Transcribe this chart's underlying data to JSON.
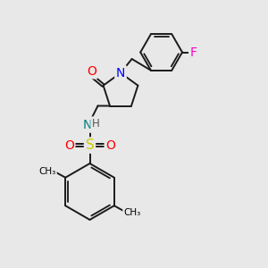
{
  "bg_color": "#e8e8e8",
  "bond_color": "#1a1a1a",
  "atom_colors": {
    "O": "#ff0000",
    "N_pyrrolidine": "#0000ff",
    "N_sulfonamide": "#008080",
    "S": "#cccc00",
    "F": "#ff00cc",
    "H": "#555555"
  },
  "layout": {
    "xlim": [
      0,
      10
    ],
    "ylim": [
      0,
      10
    ]
  }
}
